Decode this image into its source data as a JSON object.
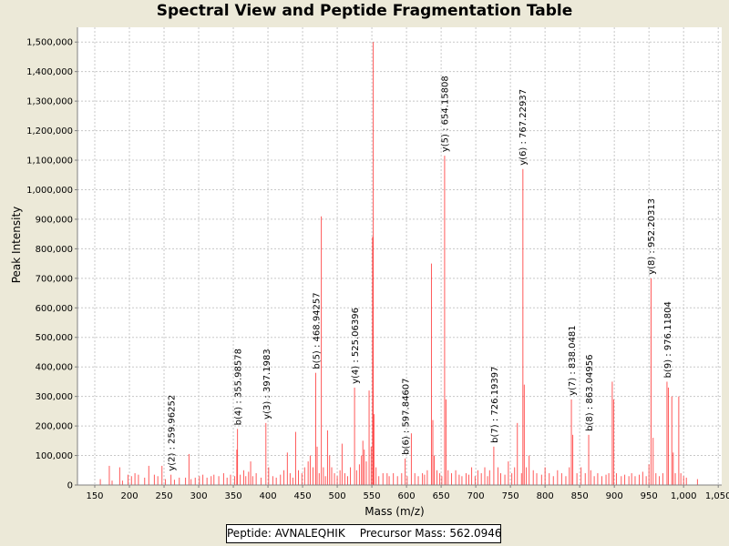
{
  "chart_data": {
    "type": "bar",
    "title": "Spectral View and Peptide Fragmentation Table",
    "xlabel": "Mass (m/z)",
    "ylabel": "Peak Intensity",
    "xlim": [
      125,
      1055
    ],
    "ylim": [
      0,
      1550000
    ],
    "x_ticks": [
      150,
      200,
      250,
      300,
      350,
      400,
      450,
      500,
      550,
      600,
      650,
      700,
      750,
      800,
      850,
      900,
      950,
      1000,
      1050
    ],
    "x_tick_labels": [
      "150",
      "200",
      "250",
      "300",
      "350",
      "400",
      "450",
      "500",
      "550",
      "600",
      "650",
      "700",
      "750",
      "800",
      "850",
      "900",
      "950",
      "1,000",
      "1,050"
    ],
    "y_ticks": [
      0,
      100000,
      200000,
      300000,
      400000,
      500000,
      600000,
      700000,
      800000,
      900000,
      1000000,
      1100000,
      1200000,
      1300000,
      1400000,
      1500000
    ],
    "y_tick_labels": [
      "0",
      "100,000",
      "200,000",
      "300,000",
      "400,000",
      "500,000",
      "600,000",
      "700,000",
      "800,000",
      "900,000",
      "1,000,000",
      "1,100,000",
      "1,200,000",
      "1,300,000",
      "1,400,000",
      "1,500,000"
    ],
    "grid": true,
    "peaks": [
      [
        158,
        20000
      ],
      [
        171,
        65000
      ],
      [
        175,
        15000
      ],
      [
        186,
        60000
      ],
      [
        190,
        15000
      ],
      [
        198,
        35000
      ],
      [
        203,
        30000
      ],
      [
        208,
        40000
      ],
      [
        213,
        35000
      ],
      [
        222,
        25000
      ],
      [
        228,
        65000
      ],
      [
        236,
        35000
      ],
      [
        241,
        30000
      ],
      [
        247,
        65000
      ],
      [
        252,
        20000
      ],
      [
        260,
        35000
      ],
      [
        265,
        18000
      ],
      [
        272,
        25000
      ],
      [
        281,
        25000
      ],
      [
        286,
        105000
      ],
      [
        289,
        20000
      ],
      [
        295,
        25000
      ],
      [
        301,
        30000
      ],
      [
        306,
        35000
      ],
      [
        312,
        25000
      ],
      [
        318,
        30000
      ],
      [
        322,
        35000
      ],
      [
        329,
        30000
      ],
      [
        336,
        40000
      ],
      [
        341,
        25000
      ],
      [
        346,
        35000
      ],
      [
        352,
        30000
      ],
      [
        355,
        120000
      ],
      [
        356,
        190000
      ],
      [
        360,
        35000
      ],
      [
        365,
        50000
      ],
      [
        368,
        30000
      ],
      [
        372,
        45000
      ],
      [
        375,
        80000
      ],
      [
        378,
        30000
      ],
      [
        383,
        40000
      ],
      [
        390,
        25000
      ],
      [
        397,
        210000
      ],
      [
        401,
        60000
      ],
      [
        407,
        30000
      ],
      [
        412,
        25000
      ],
      [
        418,
        35000
      ],
      [
        423,
        50000
      ],
      [
        428,
        110000
      ],
      [
        432,
        40000
      ],
      [
        436,
        25000
      ],
      [
        440,
        180000
      ],
      [
        444,
        50000
      ],
      [
        449,
        40000
      ],
      [
        453,
        60000
      ],
      [
        458,
        80000
      ],
      [
        461,
        100000
      ],
      [
        465,
        60000
      ],
      [
        469,
        380000
      ],
      [
        471,
        130000
      ],
      [
        474,
        40000
      ],
      [
        477,
        910000
      ],
      [
        480,
        60000
      ],
      [
        483,
        30000
      ],
      [
        486,
        185000
      ],
      [
        489,
        100000
      ],
      [
        492,
        60000
      ],
      [
        496,
        40000
      ],
      [
        500,
        30000
      ],
      [
        504,
        50000
      ],
      [
        507,
        140000
      ],
      [
        511,
        40000
      ],
      [
        515,
        30000
      ],
      [
        519,
        60000
      ],
      [
        525,
        330000
      ],
      [
        528,
        50000
      ],
      [
        532,
        70000
      ],
      [
        535,
        100000
      ],
      [
        537,
        150000
      ],
      [
        539,
        120000
      ],
      [
        542,
        80000
      ],
      [
        546,
        320000
      ],
      [
        549,
        130000
      ],
      [
        551,
        840000
      ],
      [
        552,
        1500000
      ],
      [
        553,
        240000
      ],
      [
        556,
        60000
      ],
      [
        560,
        30000
      ],
      [
        566,
        40000
      ],
      [
        572,
        40000
      ],
      [
        575,
        30000
      ],
      [
        581,
        40000
      ],
      [
        587,
        30000
      ],
      [
        593,
        40000
      ],
      [
        598,
        90000
      ],
      [
        601,
        30000
      ],
      [
        607,
        175000
      ],
      [
        612,
        40000
      ],
      [
        617,
        30000
      ],
      [
        623,
        40000
      ],
      [
        626,
        35000
      ],
      [
        630,
        50000
      ],
      [
        636,
        750000
      ],
      [
        638,
        220000
      ],
      [
        640,
        100000
      ],
      [
        644,
        50000
      ],
      [
        648,
        40000
      ],
      [
        651,
        30000
      ],
      [
        655,
        1115000
      ],
      [
        657,
        290000
      ],
      [
        660,
        50000
      ],
      [
        665,
        40000
      ],
      [
        671,
        50000
      ],
      [
        676,
        35000
      ],
      [
        680,
        30000
      ],
      [
        686,
        40000
      ],
      [
        690,
        35000
      ],
      [
        694,
        60000
      ],
      [
        699,
        30000
      ],
      [
        703,
        50000
      ],
      [
        708,
        40000
      ],
      [
        713,
        60000
      ],
      [
        717,
        30000
      ],
      [
        720,
        50000
      ],
      [
        726,
        130000
      ],
      [
        732,
        60000
      ],
      [
        736,
        40000
      ],
      [
        742,
        35000
      ],
      [
        747,
        80000
      ],
      [
        752,
        40000
      ],
      [
        756,
        60000
      ],
      [
        760,
        210000
      ],
      [
        766,
        40000
      ],
      [
        768,
        1070000
      ],
      [
        770,
        340000
      ],
      [
        773,
        60000
      ],
      [
        777,
        100000
      ],
      [
        783,
        50000
      ],
      [
        788,
        40000
      ],
      [
        795,
        35000
      ],
      [
        800,
        60000
      ],
      [
        806,
        40000
      ],
      [
        812,
        30000
      ],
      [
        818,
        50000
      ],
      [
        824,
        40000
      ],
      [
        830,
        30000
      ],
      [
        835,
        60000
      ],
      [
        838,
        290000
      ],
      [
        840,
        170000
      ],
      [
        846,
        40000
      ],
      [
        852,
        60000
      ],
      [
        858,
        40000
      ],
      [
        863,
        170000
      ],
      [
        866,
        50000
      ],
      [
        871,
        30000
      ],
      [
        876,
        40000
      ],
      [
        882,
        30000
      ],
      [
        888,
        35000
      ],
      [
        892,
        40000
      ],
      [
        897,
        350000
      ],
      [
        899,
        290000
      ],
      [
        903,
        40000
      ],
      [
        910,
        30000
      ],
      [
        915,
        35000
      ],
      [
        921,
        30000
      ],
      [
        925,
        40000
      ],
      [
        930,
        30000
      ],
      [
        936,
        35000
      ],
      [
        941,
        45000
      ],
      [
        946,
        30000
      ],
      [
        950,
        70000
      ],
      [
        953,
        700000
      ],
      [
        956,
        160000
      ],
      [
        960,
        40000
      ],
      [
        965,
        30000
      ],
      [
        970,
        40000
      ],
      [
        976,
        350000
      ],
      [
        978,
        330000
      ],
      [
        983,
        300000
      ],
      [
        985,
        110000
      ],
      [
        988,
        40000
      ],
      [
        993,
        300000
      ],
      [
        996,
        40000
      ],
      [
        1000,
        30000
      ],
      [
        1004,
        25000
      ],
      [
        1020,
        20000
      ]
    ],
    "annotations": [
      {
        "label": "y(2) : 259.96252",
        "x": 259.96252,
        "y": 35000
      },
      {
        "label": "b(4) : 355.98578",
        "x": 355.98578,
        "y": 190000
      },
      {
        "label": "y(3) : 397.1983",
        "x": 397.1983,
        "y": 210000
      },
      {
        "label": "b(5) : 468.94257",
        "x": 468.94257,
        "y": 380000
      },
      {
        "label": "y(4) : 525.06396",
        "x": 525.06396,
        "y": 330000
      },
      {
        "label": "b(6) : 597.84607",
        "x": 597.84607,
        "y": 90000
      },
      {
        "label": "y(5) : 654.15808",
        "x": 654.15808,
        "y": 1115000
      },
      {
        "label": "b(7) : 726.19397",
        "x": 726.19397,
        "y": 130000
      },
      {
        "label": "y(6) : 767.22937",
        "x": 767.22937,
        "y": 1070000
      },
      {
        "label": "y(7) : 838.0481",
        "x": 838.0481,
        "y": 290000
      },
      {
        "label": "b(8) : 863.04956",
        "x": 863.04956,
        "y": 170000
      },
      {
        "label": "y(8) : 952.20313",
        "x": 952.20313,
        "y": 700000
      },
      {
        "label": "b(9) : 976.11804",
        "x": 976.11804,
        "y": 350000
      }
    ]
  },
  "colors": {
    "peak": "#ff0000",
    "grid": "#c8c8c8",
    "plot_bg": "#ffffff",
    "page_bg": "#ece9d8"
  },
  "footer": {
    "peptide_label": "Peptide: AVNALEQHIK",
    "precursor_label": "Precursor Mass: 562.0946"
  }
}
